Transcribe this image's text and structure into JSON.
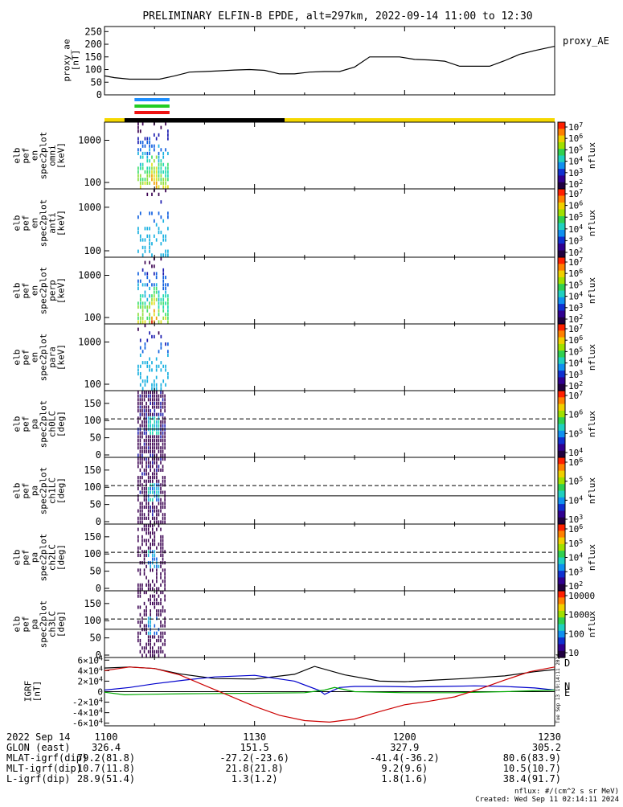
{
  "title": "PRELIMINARY ELFIN-B EPDE, alt=297km, 2022-09-14 11:00 to 12:30",
  "colors": {
    "fg": "#000000",
    "bar_yellow": "#f5d800",
    "bar_black": "#000000",
    "seg_blue": "#1e90ff",
    "seg_green": "#22cc22",
    "seg_red": "#ee1111",
    "bx": "#000000",
    "by": "#00aa00",
    "bz": "#0000cc",
    "bmag": "#cc0000"
  },
  "ae_panel": {
    "ylabel": "proxy_ae\n[nT]",
    "legend": "proxy_AE",
    "ticks": [
      "0",
      "50",
      "100",
      "150",
      "200",
      "250"
    ]
  },
  "spec_panels": [
    {
      "ylabel": "elb\npef\nen\nspec2plot\nomni\n[keV]",
      "ticks": [
        "100",
        "1000"
      ],
      "cb_label": "nflux",
      "cb_ticks": [
        "10^2",
        "10^3",
        "10^4",
        "10^5",
        "10^6",
        "10^7"
      ]
    },
    {
      "ylabel": "elb\npef\nen\nspec2plot\nanti\n[keV]",
      "ticks": [
        "100",
        "1000"
      ],
      "cb_label": "nflux",
      "cb_ticks": [
        "10^2",
        "10^3",
        "10^4",
        "10^5",
        "10^6",
        "10^7"
      ]
    },
    {
      "ylabel": "elb\npef\nen\nspec2plot\nperp\n[keV]",
      "ticks": [
        "100",
        "1000"
      ],
      "cb_label": "nflux",
      "cb_ticks": [
        "10^2",
        "10^3",
        "10^4",
        "10^5",
        "10^6",
        "10^7"
      ]
    },
    {
      "ylabel": "elb\npef\nen\nspec2plot\npara\n[keV]",
      "ticks": [
        "100",
        "1000"
      ],
      "cb_label": "nflux",
      "cb_ticks": [
        "10^2",
        "10^3",
        "10^4",
        "10^5",
        "10^6",
        "10^7"
      ]
    }
  ],
  "pa_panels": [
    {
      "ylabel": "elb\npef\npa\nspec2plot\nch0LC\n[deg]",
      "ticks": [
        "0",
        "50",
        "100",
        "150"
      ],
      "cb_label": "nflux",
      "cb_ticks": [
        "10^4",
        "10^5",
        "10^6",
        "10^7"
      ]
    },
    {
      "ylabel": "elb\npef\npa\nspec2plot\nch1LC\n[deg]",
      "ticks": [
        "0",
        "50",
        "100",
        "150"
      ],
      "cb_label": "nflux",
      "cb_ticks": [
        "10^3",
        "10^4",
        "10^5",
        "10^6"
      ]
    },
    {
      "ylabel": "elb\npef\npa\nspec2plot\nch2LC\n[deg]",
      "ticks": [
        "0",
        "50",
        "100",
        "150"
      ],
      "cb_label": "nflux",
      "cb_ticks": [
        "10^2",
        "10^3",
        "10^4",
        "10^5",
        "10^6"
      ]
    },
    {
      "ylabel": "elb\npef\npa\nspec2plot\nch3LC\n[deg]",
      "ticks": [
        "0",
        "50",
        "100",
        "150"
      ],
      "cb_label": "nflux",
      "cb_ticks": [
        "10",
        "100",
        "1000",
        "10000"
      ]
    }
  ],
  "igrf_panel": {
    "ylabel": "IGRF\n[nT]",
    "ticks": [
      "-6×10^4",
      "-4×10^4",
      "-2×10^4",
      "0",
      "2×10^4",
      "4×10^4",
      "6×10^4"
    ],
    "right_labels": [
      "D",
      "N",
      "E"
    ],
    "stamp": "Tue Sep 13 19:14:11 2024"
  },
  "footer": {
    "rows": [
      {
        "label": "2022 Sep 14",
        "values": [
          "1100",
          "1130",
          "1200",
          "1230"
        ]
      },
      {
        "label": "GLON (east)",
        "values": [
          "326.4",
          "151.5",
          "327.9",
          "305.2"
        ]
      },
      {
        "label": "MLAT-igrf(dip)",
        "values": [
          "79.2(81.8)",
          "-27.2(-23.6)",
          "-41.4(-36.2)",
          "80.6(83.9)"
        ]
      },
      {
        "label": "MLT-igrf(dip)",
        "values": [
          "10.7(11.8)",
          "21.8(21.8)",
          "9.2(9.6)",
          "10.5(10.7)"
        ]
      },
      {
        "label": "L-igrf(dip)",
        "values": [
          "28.9(51.4)",
          "1.3(1.2)",
          "1.8(1.6)",
          "38.4(91.7)"
        ]
      }
    ],
    "note1": "nflux: #/(cm^2 s sr MeV)",
    "note2": "Created: Wed Sep 11 02:14:11 2024"
  },
  "chart_data": {
    "type": "line",
    "x_range_min": [
      0,
      90
    ],
    "ae": {
      "ylim": [
        0,
        270
      ],
      "x": [
        0,
        2,
        5,
        8,
        11,
        14,
        17,
        20,
        23,
        26,
        29,
        32,
        35,
        38,
        41,
        44,
        47,
        50,
        53,
        56,
        59,
        62,
        65,
        68,
        71,
        74,
        77,
        80,
        83,
        86,
        90
      ],
      "y": [
        75,
        68,
        62,
        62,
        62,
        75,
        90,
        92,
        95,
        98,
        100,
        97,
        83,
        83,
        90,
        92,
        92,
        110,
        150,
        150,
        150,
        140,
        138,
        133,
        113,
        113,
        113,
        135,
        160,
        175,
        192
      ]
    },
    "spectrogram_time_window_min": [
      6,
      13
    ],
    "igrf": {
      "ylim": [
        -65000,
        65000
      ],
      "bx_x": [
        0,
        5,
        10,
        15,
        22,
        30,
        38,
        42,
        48,
        55,
        60,
        66,
        72,
        80,
        86,
        90
      ],
      "bx_y": [
        45000,
        47000,
        44000,
        34000,
        25000,
        24000,
        33000,
        48000,
        32000,
        20000,
        19000,
        22000,
        25000,
        30000,
        38000,
        42000
      ],
      "bz_x": [
        0,
        5,
        10,
        16,
        22,
        30,
        38,
        43,
        44,
        47,
        50,
        56,
        62,
        68,
        74,
        80,
        86,
        90
      ],
      "bz_y": [
        3000,
        8000,
        15000,
        22000,
        28000,
        31000,
        20000,
        2000,
        -5000,
        8000,
        10000,
        10000,
        9000,
        10000,
        11000,
        10000,
        7000,
        3000
      ],
      "by_x": [
        0,
        4,
        8,
        16,
        30,
        40,
        44,
        46,
        50,
        60,
        70,
        80,
        90
      ],
      "by_y": [
        -1000,
        -6000,
        -5000,
        -4000,
        -3000,
        -2000,
        3000,
        8000,
        0,
        -2000,
        -2000,
        0,
        3000
      ],
      "bmag_x": [
        0,
        5,
        10,
        15,
        20,
        25,
        30,
        35,
        40,
        45,
        50,
        55,
        60,
        65,
        70,
        75,
        80,
        85,
        90
      ],
      "bmag_y": [
        40000,
        47000,
        44000,
        32000,
        12000,
        -8000,
        -28000,
        -45000,
        -55000,
        -58000,
        -52000,
        -38000,
        -25000,
        -18000,
        -10000,
        5000,
        22000,
        38000,
        47000
      ]
    },
    "pa_lines_deg": {
      "solid": 75,
      "dashed": 105
    }
  }
}
